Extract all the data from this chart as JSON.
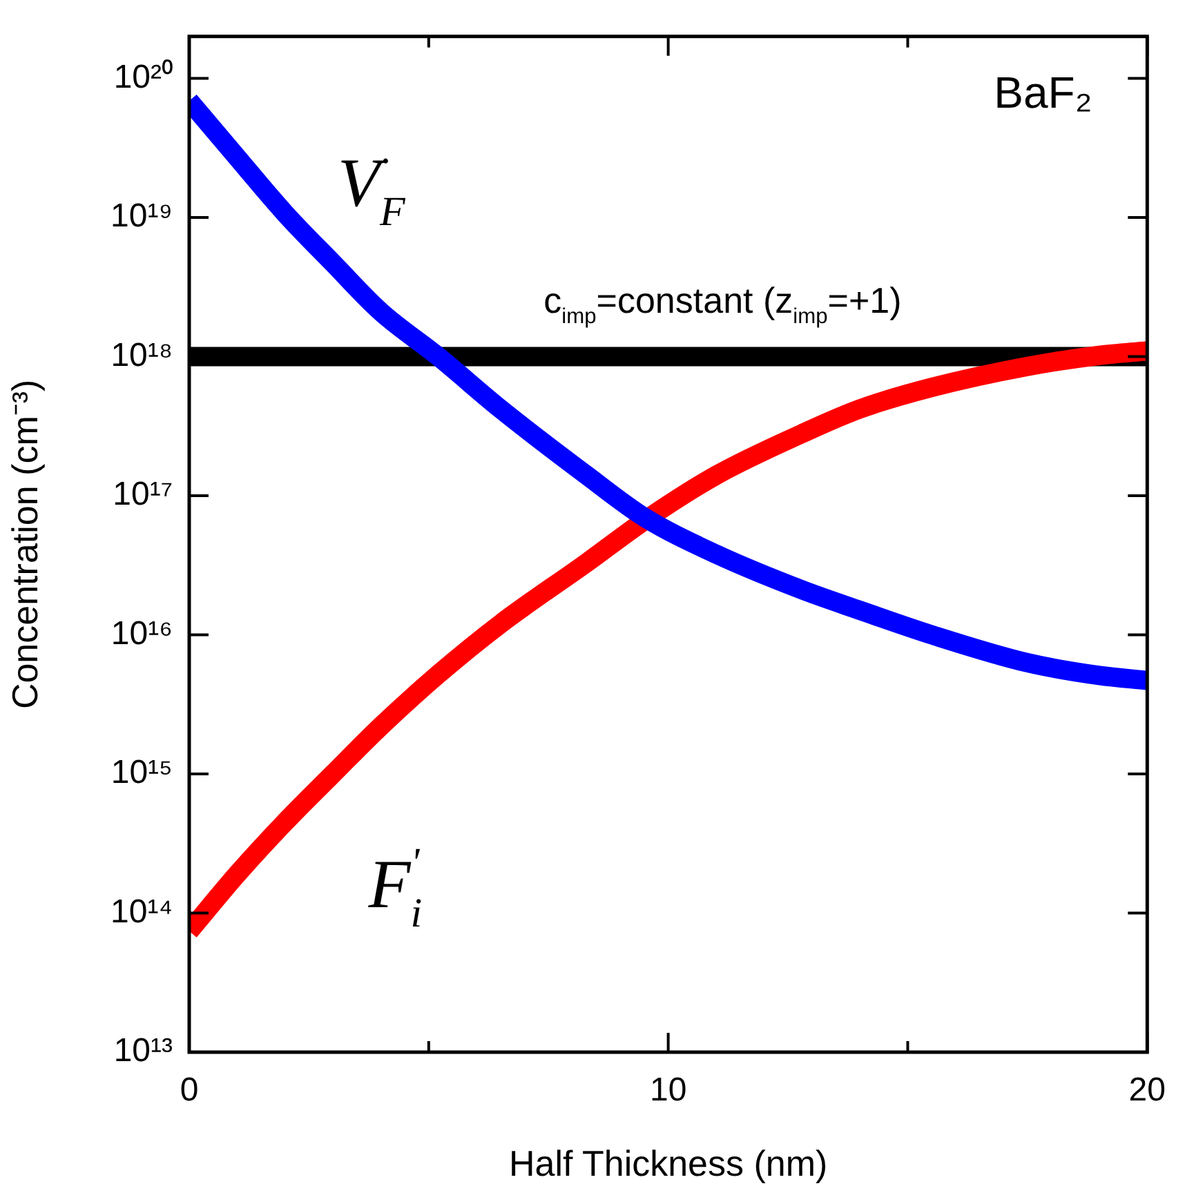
{
  "chart_data": {
    "type": "line",
    "xlabel": "Half Thickness (nm)",
    "ylabel": "Concentration (cm⁻³)",
    "log": "y",
    "marker": "none",
    "line_style": "solid",
    "grid": false,
    "xlim": [
      0,
      20
    ],
    "xticks": [
      0,
      {
        "value": 5,
        "label": null
      },
      10,
      {
        "value": 15,
        "label": null
      },
      20
    ],
    "ylim": [
      10000000000000.0,
      2e+20
    ],
    "yticks": [
      {
        "value": 10000000000000.0,
        "label": "10¹³"
      },
      {
        "value": 100000000000000.0,
        "label": "10¹⁴"
      },
      {
        "value": 1000000000000000.0,
        "label": "10¹⁵"
      },
      {
        "value": 1e+16,
        "label": "10¹⁶"
      },
      {
        "value": 1e+17,
        "label": "10¹⁷"
      },
      {
        "value": 1e+18,
        "label": "10¹⁸"
      },
      {
        "value": 1e+19,
        "label": "10¹⁹"
      },
      {
        "value": 1e+20,
        "label": "10²⁰"
      }
    ],
    "x": [
      0,
      1,
      2,
      3,
      4,
      5.2,
      6.5,
      8.3,
      9.5,
      11,
      12.8,
      14,
      15.5,
      17.5,
      19,
      20
    ],
    "series": [
      {
        "color": "#0000ff",
        "values": [
          6.9e+19,
          2.7e+19,
          1.07e+19,
          4.7e+18,
          2.1e+18,
          1e+18,
          4.2e+17,
          1.4e+17,
          7e+16,
          3.8e+16,
          2.1e+16,
          1.5e+16,
          1e+16,
          6300000000000000.0,
          5100000000000000.0,
          4700000000000000.0
        ]
      },
      {
        "color": "#ff0000",
        "values": [
          74000000000000.0,
          190000000000000.0,
          450000000000000.0,
          1000000000000000.0,
          2200000000000000.0,
          5200000000000000.0,
          1.2e+16,
          3.3e+16,
          6.6e+16,
          1.4e+17,
          2.8e+17,
          4.2e+17,
          6e+17,
          8.5e+17,
          1.02e+18,
          1.1e+18
        ]
      },
      {
        "color": "#000000",
        "x": [
          0,
          20
        ],
        "values": [
          1e+18,
          1e+18
        ]
      }
    ],
    "annotations": [
      "V$_{F}$$^{·}$",
      "F$_{i}$$^{'}$",
      "c$_{imp}$=constant (z$_{imp}$=+1)",
      "BaF₂"
    ]
  }
}
